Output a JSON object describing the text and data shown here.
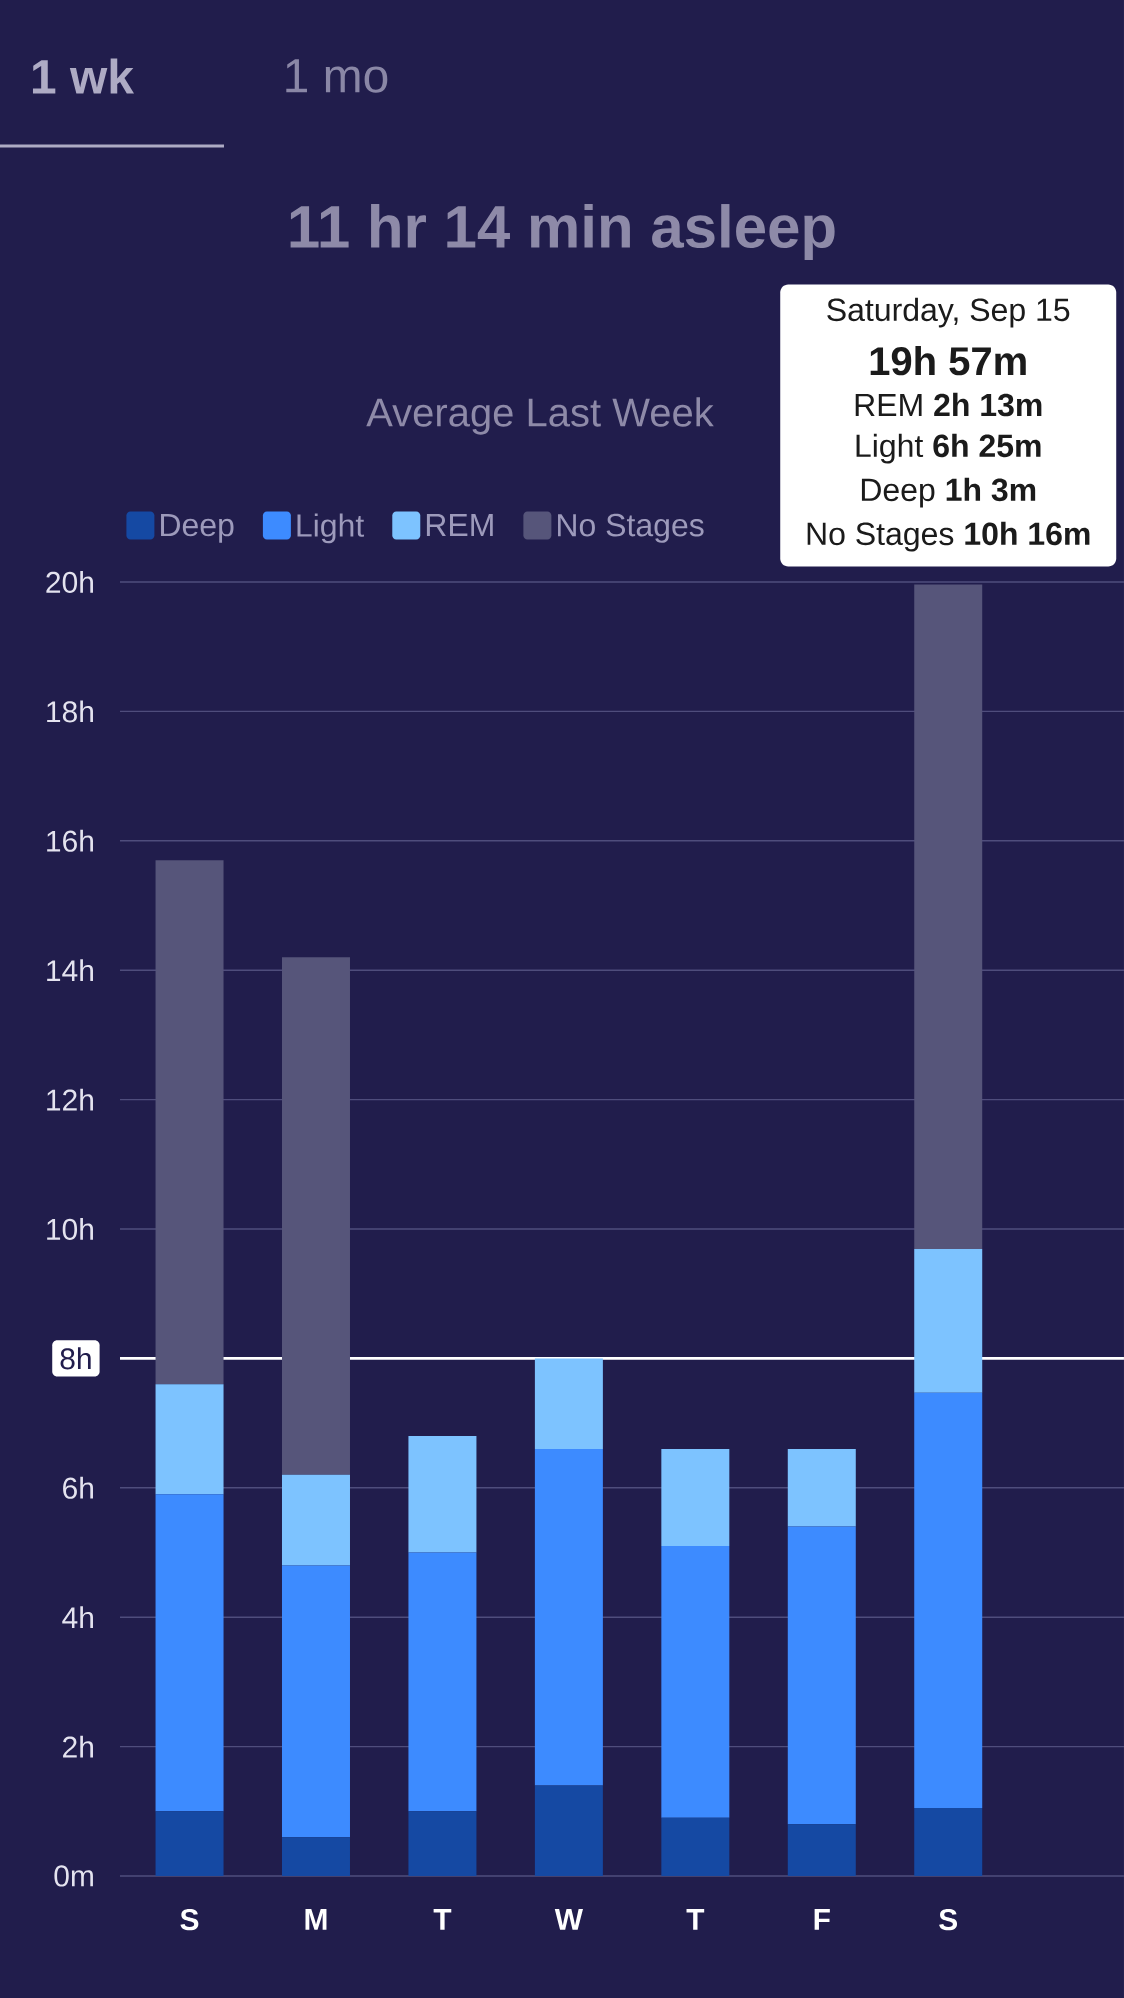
{
  "chart_data": {
    "type": "bar",
    "stacked": true,
    "title": "11 hr 14 min asleep",
    "subtitle": "Average Last Week",
    "categories": [
      "S",
      "M",
      "T",
      "W",
      "T",
      "F",
      "S"
    ],
    "series": [
      {
        "name": "Deep",
        "color": "#1549a3",
        "values": [
          1.0,
          0.6,
          1.0,
          1.4,
          0.9,
          0.8,
          1.05
        ]
      },
      {
        "name": "Light",
        "color": "#3d8bff",
        "values": [
          4.9,
          4.2,
          4.0,
          5.2,
          4.2,
          4.6,
          6.42
        ]
      },
      {
        "name": "REM",
        "color": "#7dc3ff",
        "values": [
          1.7,
          1.4,
          1.8,
          1.4,
          1.5,
          1.2,
          2.22
        ]
      },
      {
        "name": "No Stages",
        "color": "#56557a",
        "values": [
          8.1,
          8.0,
          null,
          null,
          null,
          null,
          10.27
        ]
      }
    ],
    "ylim": [
      0,
      20
    ],
    "yticks": [
      {
        "value": 0,
        "label": "0m"
      },
      {
        "value": 2,
        "label": "2h"
      },
      {
        "value": 4,
        "label": "4h"
      },
      {
        "value": 6,
        "label": "6h"
      },
      {
        "value": 10,
        "label": "10h"
      },
      {
        "value": 12,
        "label": "12h"
      },
      {
        "value": 14,
        "label": "14h"
      },
      {
        "value": 16,
        "label": "16h"
      },
      {
        "value": 18,
        "label": "18h"
      },
      {
        "value": 20,
        "label": "20h"
      }
    ],
    "grid": "y",
    "legend": "top left",
    "ref_lines": [
      {
        "axis": "y",
        "value": 8,
        "label": "8h",
        "color": "#ffffff"
      }
    ],
    "annotations": [
      "1 wk",
      "1 mo",
      "Saturday, Sep 15",
      "19h 57m",
      "REM **2h 13m**",
      "Light **6h 25m**",
      "Deep **1h 3m**",
      "No Stages **10h 16m**"
    ]
  }
}
